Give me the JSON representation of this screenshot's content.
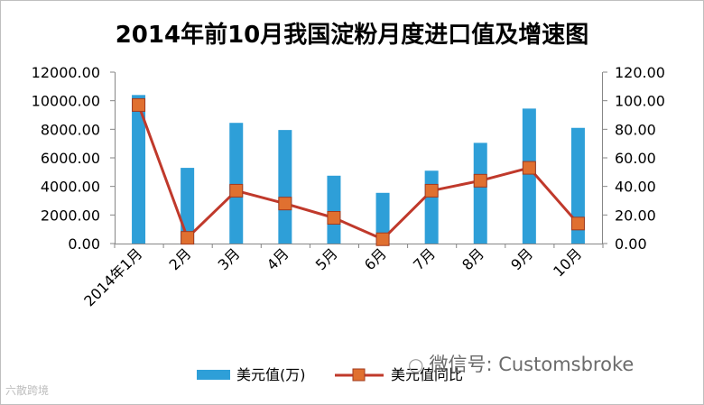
{
  "chart_data": {
    "type": "bar",
    "title": "2014年前10月我国淀粉月度进口值及增速图",
    "categories": [
      "2014年1月",
      "2月",
      "3月",
      "4月",
      "5月",
      "6月",
      "7月",
      "8月",
      "9月",
      "10月"
    ],
    "series": [
      {
        "name": "美元值(万)",
        "type": "bar",
        "axis": "left",
        "values": [
          10400,
          5300,
          8450,
          7950,
          4750,
          3550,
          5100,
          7050,
          9450,
          8100
        ],
        "color": "#2e9fd8"
      },
      {
        "name": "美元值同比",
        "type": "line",
        "axis": "right",
        "values": [
          97,
          4,
          37,
          28,
          18,
          3,
          37,
          44,
          53,
          14
        ],
        "color": "#c0392b",
        "marker_color": "#e07030"
      }
    ],
    "y_left": {
      "ylim": [
        0,
        12000
      ],
      "ticks": [
        "0.00",
        "2000.00",
        "4000.00",
        "6000.00",
        "8000.00",
        "10000.00",
        "12000.00"
      ]
    },
    "y_right": {
      "ylim": [
        0,
        120
      ],
      "ticks": [
        "0.00",
        "20.00",
        "40.00",
        "60.00",
        "80.00",
        "100.00",
        "120.00"
      ]
    },
    "xlabel": "",
    "ylabel": "",
    "grid": false,
    "legend_position": "bottom"
  },
  "watermark": {
    "text": "微信号: Customsbroke",
    "icon": "wechat-icon"
  },
  "brand": {
    "text": "六散跨境"
  }
}
